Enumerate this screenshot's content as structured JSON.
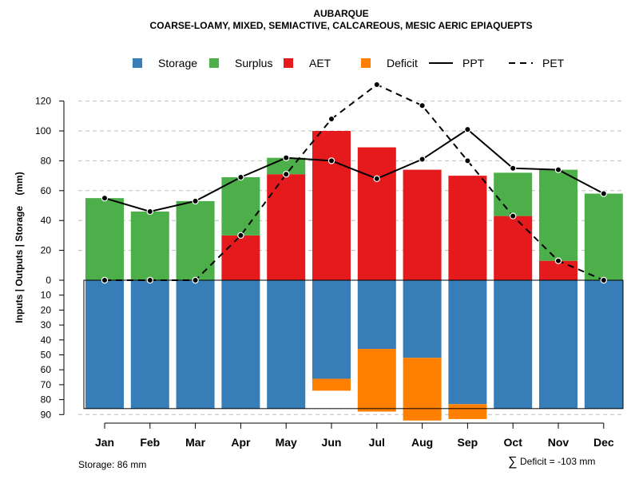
{
  "chart_data": {
    "type": "bar",
    "title": "AUBARQUE",
    "subtitle": "COARSE-LOAMY, MIXED, SEMIACTIVE, CALCAREOUS, MESIC AERIC EPIAQUEPTS",
    "ylabel": "Inputs | Outputs | Storage    (mm)",
    "ylim_upper": [
      0,
      135
    ],
    "ylim_lower": [
      0,
      90
    ],
    "upper_ticks": [
      "0",
      "20",
      "40",
      "60",
      "80",
      "100",
      "120"
    ],
    "upper_tick_values": [
      0,
      20,
      40,
      60,
      80,
      100,
      120
    ],
    "lower_ticks": [
      "10",
      "20",
      "30",
      "40",
      "50",
      "60",
      "70",
      "80",
      "90"
    ],
    "lower_tick_values": [
      10,
      20,
      30,
      40,
      50,
      60,
      70,
      80,
      90
    ],
    "categories": [
      "Jan",
      "Feb",
      "Mar",
      "Apr",
      "May",
      "Jun",
      "Jul",
      "Aug",
      "Sep",
      "Oct",
      "Nov",
      "Dec"
    ],
    "series": [
      {
        "name": "AET",
        "color": "#E41A1C",
        "values": [
          0,
          0,
          0,
          30,
          71,
          100,
          89,
          74,
          70,
          43,
          13,
          0
        ]
      },
      {
        "name": "Surplus",
        "color": "#4DAF4A",
        "values": [
          55,
          46,
          53,
          39,
          11,
          0,
          0,
          0,
          0,
          29,
          61,
          58
        ]
      },
      {
        "name": "Storage",
        "color": "#377EB8",
        "values": [
          86,
          86,
          86,
          86,
          86,
          66,
          46,
          52,
          83,
          86,
          86,
          86
        ]
      },
      {
        "name": "Deficit",
        "color": "#FF7F00",
        "values": [
          0,
          0,
          0,
          0,
          0,
          8,
          42,
          42,
          10,
          0,
          0,
          0
        ]
      },
      {
        "name": "PPT",
        "color": "#000000",
        "style": "solid",
        "values": [
          55,
          46,
          53,
          69,
          82,
          80,
          68,
          81,
          101,
          75,
          74,
          58
        ]
      },
      {
        "name": "PET",
        "color": "#000000",
        "style": "dashed",
        "values": [
          0,
          0,
          0,
          30,
          71,
          108,
          131,
          117,
          80,
          43,
          13,
          0
        ]
      }
    ],
    "legend": {
      "placement": "top",
      "items": [
        {
          "label": "Storage",
          "kind": "box",
          "color": "#377EB8"
        },
        {
          "label": "Surplus",
          "kind": "box",
          "color": "#4DAF4A"
        },
        {
          "label": "AET",
          "kind": "box",
          "color": "#E41A1C"
        },
        {
          "label": "Deficit",
          "kind": "box",
          "color": "#FF7F00"
        },
        {
          "label": "PPT",
          "kind": "line",
          "dash": ""
        },
        {
          "label": "PET",
          "kind": "line",
          "dash": "8,6"
        }
      ]
    },
    "storage_capacity": 86,
    "annotations": {
      "storage": "Storage: 86 mm",
      "deficit_symbol": "∑",
      "deficit": "Deficit = -103 mm"
    }
  }
}
